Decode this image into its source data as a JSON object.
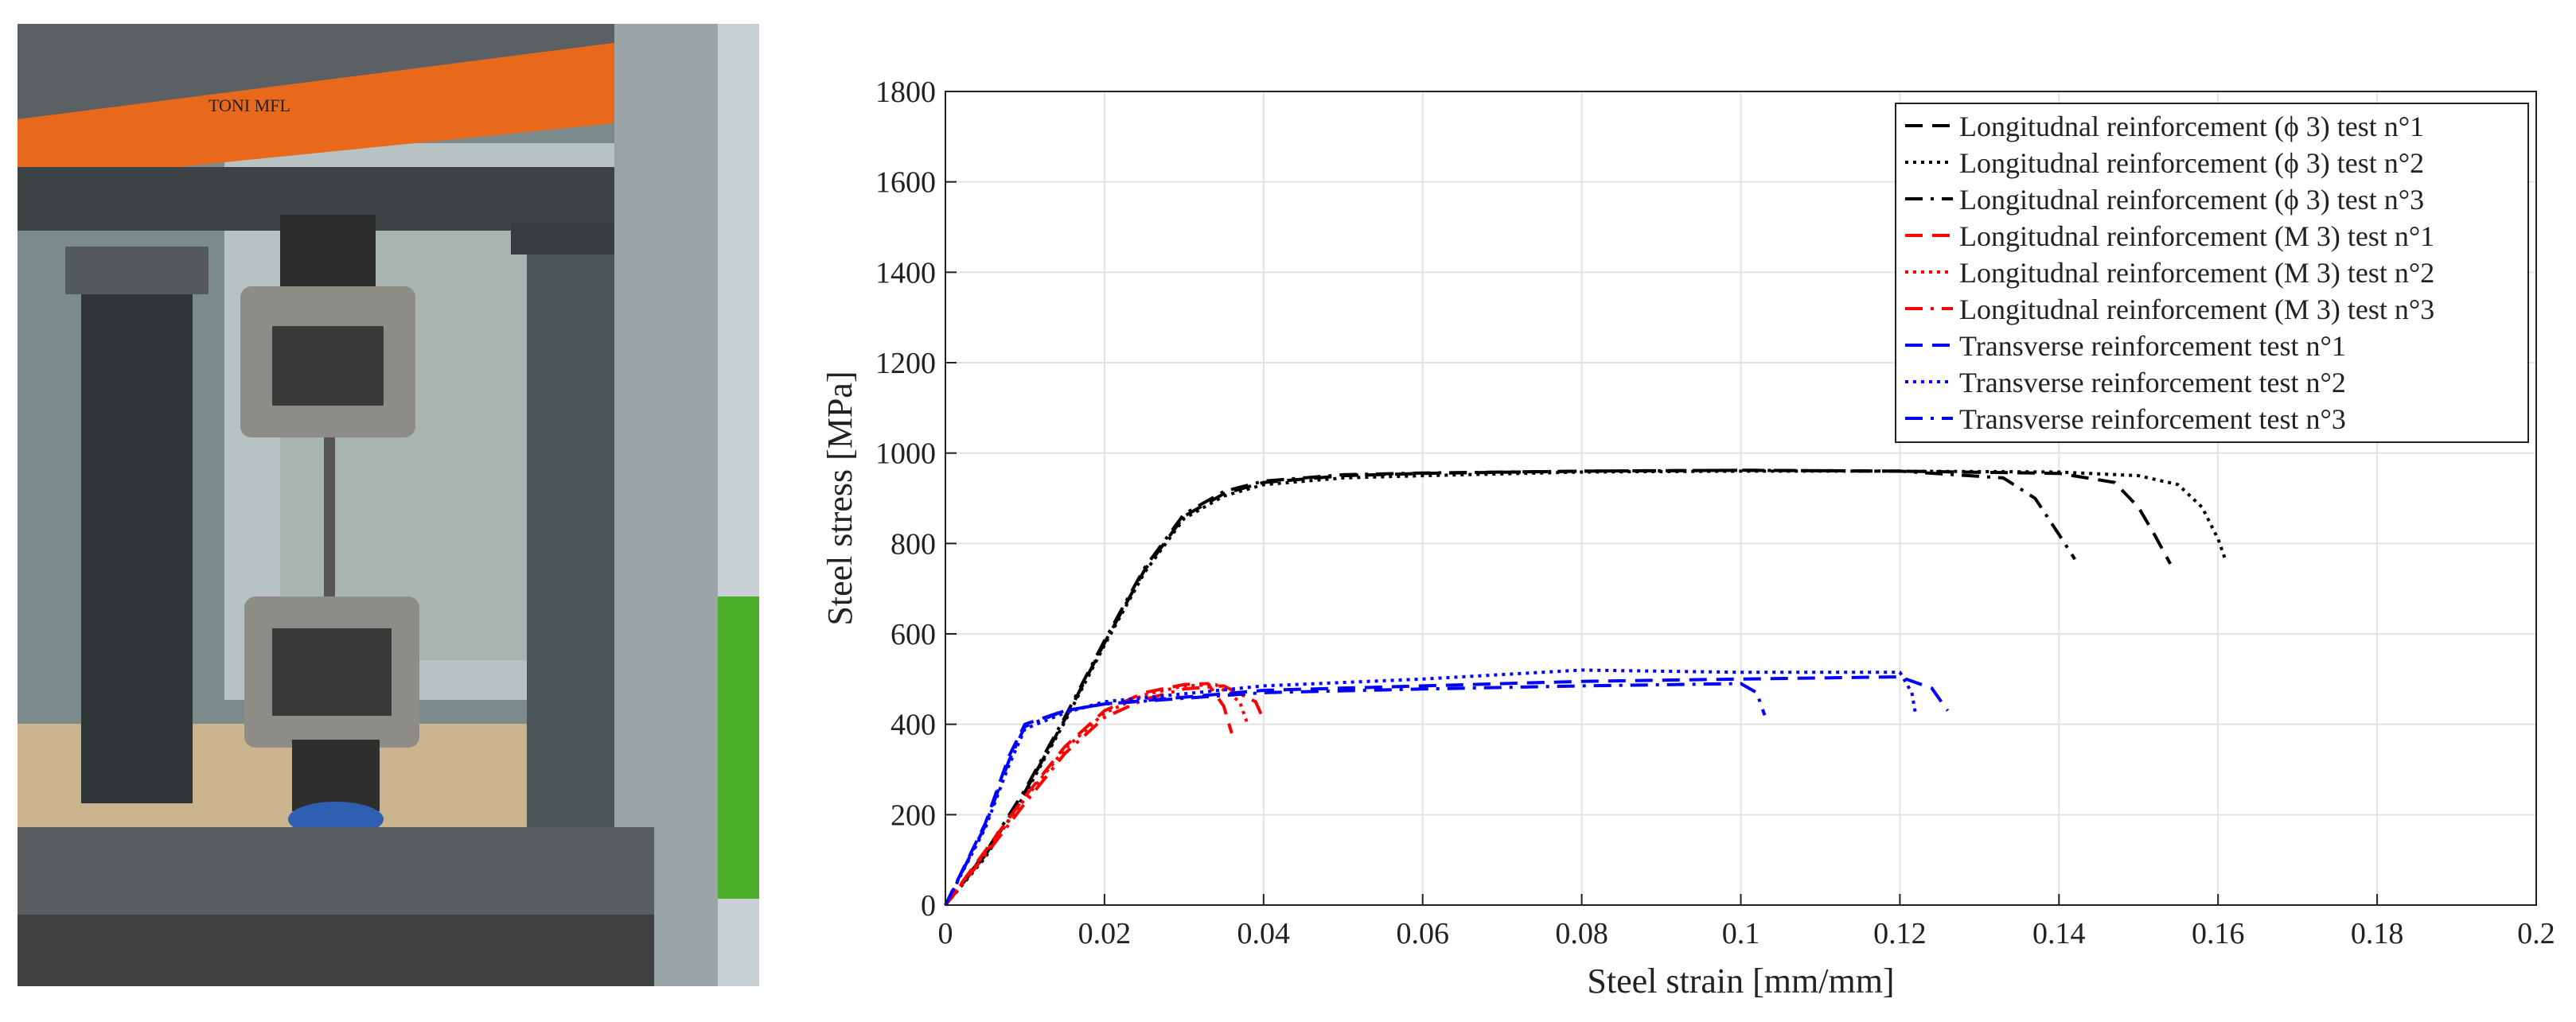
{
  "photo": {
    "description_label": "",
    "machine_brand_text": "TONI MFL"
  },
  "chart_data": {
    "type": "line",
    "title": "",
    "xlabel": "Steel strain [mm/mm]",
    "ylabel": "Steel stress [MPa]",
    "xlim": [
      0,
      0.2
    ],
    "ylim": [
      0,
      1800
    ],
    "xticks": [
      0,
      0.02,
      0.04,
      0.06,
      0.08,
      0.1,
      0.12,
      0.14,
      0.16,
      0.18,
      0.2
    ],
    "xtick_labels": [
      "0",
      "0.02",
      "0.04",
      "0.06",
      "0.08",
      "0.1",
      "0.12",
      "0.14",
      "0.16",
      "0.18",
      "0.2"
    ],
    "yticks": [
      0,
      200,
      400,
      600,
      800,
      1000,
      1200,
      1400,
      1600,
      1800
    ],
    "ytick_labels": [
      "0",
      "200",
      "400",
      "600",
      "800",
      "1000",
      "1200",
      "1400",
      "1600",
      "1800"
    ],
    "grid": true,
    "legend_position": "top-right",
    "series": [
      {
        "name": "Longitudnal reinforcement (ϕ 3) test n°1",
        "color": "#000000",
        "dash": "dashed",
        "x": [
          0,
          0.005,
          0.01,
          0.015,
          0.02,
          0.025,
          0.03,
          0.035,
          0.04,
          0.05,
          0.06,
          0.08,
          0.1,
          0.12,
          0.14,
          0.147,
          0.15,
          0.152,
          0.154
        ],
        "y": [
          0,
          110,
          250,
          410,
          580,
          740,
          860,
          910,
          935,
          950,
          955,
          960,
          962,
          960,
          955,
          935,
          880,
          820,
          755
        ]
      },
      {
        "name": "Longitudnal reinforcement (ϕ 3) test n°2",
        "color": "#000000",
        "dash": "dotted",
        "x": [
          0,
          0.005,
          0.01,
          0.015,
          0.02,
          0.025,
          0.03,
          0.035,
          0.04,
          0.05,
          0.06,
          0.08,
          0.1,
          0.12,
          0.14,
          0.15,
          0.155,
          0.158,
          0.16,
          0.161
        ],
        "y": [
          0,
          105,
          245,
          405,
          575,
          735,
          855,
          905,
          930,
          945,
          950,
          958,
          960,
          960,
          958,
          950,
          930,
          880,
          810,
          760
        ]
      },
      {
        "name": "Longitudnal reinforcement (ϕ 3) test n°3",
        "color": "#000000",
        "dash": "dashdot",
        "x": [
          0,
          0.005,
          0.01,
          0.015,
          0.02,
          0.025,
          0.03,
          0.035,
          0.04,
          0.05,
          0.06,
          0.08,
          0.1,
          0.12,
          0.133,
          0.137,
          0.14,
          0.142
        ],
        "y": [
          0,
          115,
          255,
          415,
          585,
          745,
          865,
          915,
          938,
          952,
          956,
          960,
          962,
          960,
          945,
          900,
          820,
          765
        ]
      },
      {
        "name": "Longitudnal reinforcement (M 3) test n°1",
        "color": "#ff0000",
        "dash": "dashed",
        "x": [
          0,
          0.005,
          0.01,
          0.015,
          0.02,
          0.025,
          0.03,
          0.033,
          0.035,
          0.036
        ],
        "y": [
          0,
          120,
          240,
          350,
          430,
          470,
          488,
          490,
          440,
          380
        ]
      },
      {
        "name": "Longitudnal reinforcement (M 3) test n°2",
        "color": "#ff0000",
        "dash": "dotted",
        "x": [
          0,
          0.005,
          0.01,
          0.015,
          0.02,
          0.025,
          0.03,
          0.034,
          0.037,
          0.038
        ],
        "y": [
          0,
          115,
          235,
          345,
          425,
          465,
          485,
          488,
          450,
          400
        ]
      },
      {
        "name": "Longitudnal reinforcement (M 3) test n°3",
        "color": "#ff0000",
        "dash": "dashdot",
        "x": [
          0,
          0.005,
          0.01,
          0.015,
          0.02,
          0.025,
          0.03,
          0.035,
          0.039,
          0.04
        ],
        "y": [
          0,
          110,
          225,
          335,
          415,
          455,
          478,
          485,
          450,
          410
        ]
      },
      {
        "name": "Transverse reinforcement test n°1",
        "color": "#0000ff",
        "dash": "dashed",
        "x": [
          0,
          0.005,
          0.008,
          0.01,
          0.015,
          0.02,
          0.04,
          0.06,
          0.08,
          0.1,
          0.12,
          0.124,
          0.126
        ],
        "y": [
          0,
          180,
          330,
          400,
          430,
          445,
          475,
          485,
          495,
          500,
          505,
          480,
          430
        ]
      },
      {
        "name": "Transverse reinforcement test n°2",
        "color": "#0000ff",
        "dash": "dotted",
        "x": [
          0,
          0.005,
          0.008,
          0.01,
          0.015,
          0.02,
          0.04,
          0.06,
          0.08,
          0.1,
          0.12,
          0.1215,
          0.122
        ],
        "y": [
          0,
          170,
          310,
          390,
          425,
          450,
          485,
          500,
          520,
          515,
          515,
          470,
          420
        ]
      },
      {
        "name": "Transverse reinforcement test n°3",
        "color": "#0000ff",
        "dash": "dashdot",
        "x": [
          0,
          0.005,
          0.008,
          0.01,
          0.015,
          0.02,
          0.04,
          0.06,
          0.08,
          0.1,
          0.102,
          0.103
        ],
        "y": [
          0,
          175,
          320,
          395,
          430,
          445,
          470,
          478,
          485,
          490,
          470,
          420
        ]
      }
    ]
  }
}
